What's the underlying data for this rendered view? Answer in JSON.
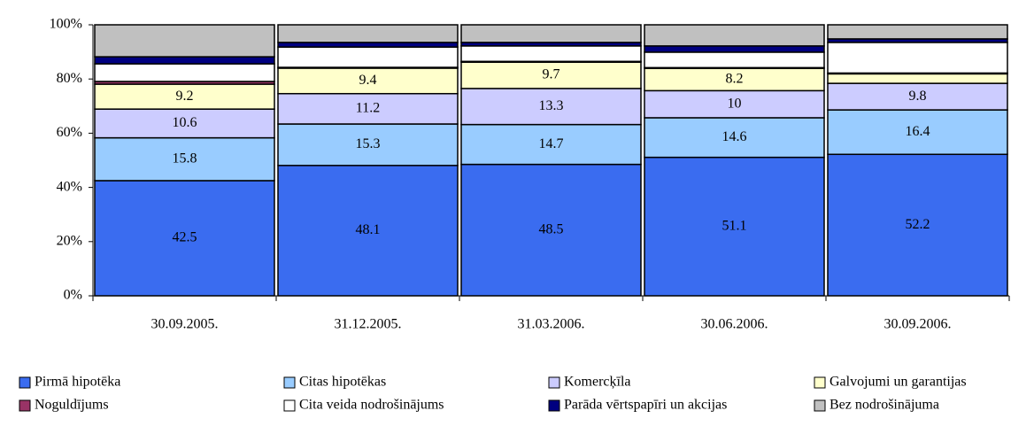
{
  "chart_data": {
    "type": "stacked_bar_100",
    "categories": [
      "30.09.2005.",
      "31.12.2005.",
      "31.03.2006.",
      "30.06.2006.",
      "30.09.2006."
    ],
    "ylim": [
      0,
      100
    ],
    "yticks": [
      {
        "value": 0,
        "label": "0%"
      },
      {
        "value": 20,
        "label": "20%"
      },
      {
        "value": 40,
        "label": "40%"
      },
      {
        "value": 60,
        "label": "60%"
      },
      {
        "value": 80,
        "label": "80%"
      },
      {
        "value": 100,
        "label": "100%"
      }
    ],
    "series": [
      {
        "name": "Pirmā hipotēka",
        "color": "#3a6cf0",
        "values": [
          42.5,
          48.1,
          48.5,
          51.1,
          52.2
        ],
        "value_labels": [
          "42.5",
          "48.1",
          "48.5",
          "51.1",
          "52.2"
        ]
      },
      {
        "name": "Citas hipotēkas",
        "color": "#99ccff",
        "values": [
          15.8,
          15.3,
          14.7,
          14.6,
          16.4
        ],
        "value_labels": [
          "15.8",
          "15.3",
          "14.7",
          "14.6",
          "16.4"
        ]
      },
      {
        "name": "Komercķīla",
        "color": "#ccccff",
        "values": [
          10.6,
          11.2,
          13.3,
          10,
          9.8
        ],
        "value_labels": [
          "10.6",
          "11.2",
          "13.3",
          "10",
          "9.8"
        ]
      },
      {
        "name": "Galvojumi un garantijas",
        "color": "#ffffcc",
        "values": [
          9.2,
          9.4,
          9.7,
          8.2,
          3.5
        ],
        "value_labels": [
          "9.2",
          "9.4",
          "9.7",
          "8.2",
          null
        ]
      },
      {
        "name": "Noguldījums",
        "color": "#993366",
        "values": [
          1,
          0.3,
          0.3,
          0.3,
          0.3
        ]
      },
      {
        "name": "Cita veida nodrošinājums",
        "color": "#ffffff",
        "values": [
          6.5,
          7.5,
          5.7,
          5.7,
          11.3
        ]
      },
      {
        "name": "Parāda vērtspapīri un akcijas",
        "color": "#000080",
        "values": [
          2.6,
          1.7,
          1.3,
          2.3,
          1.3
        ]
      },
      {
        "name": "Bez nodrošinājuma",
        "color": "#c0c0c0",
        "values": [
          11.8,
          6.5,
          6.5,
          7.8,
          5.2
        ]
      }
    ]
  }
}
